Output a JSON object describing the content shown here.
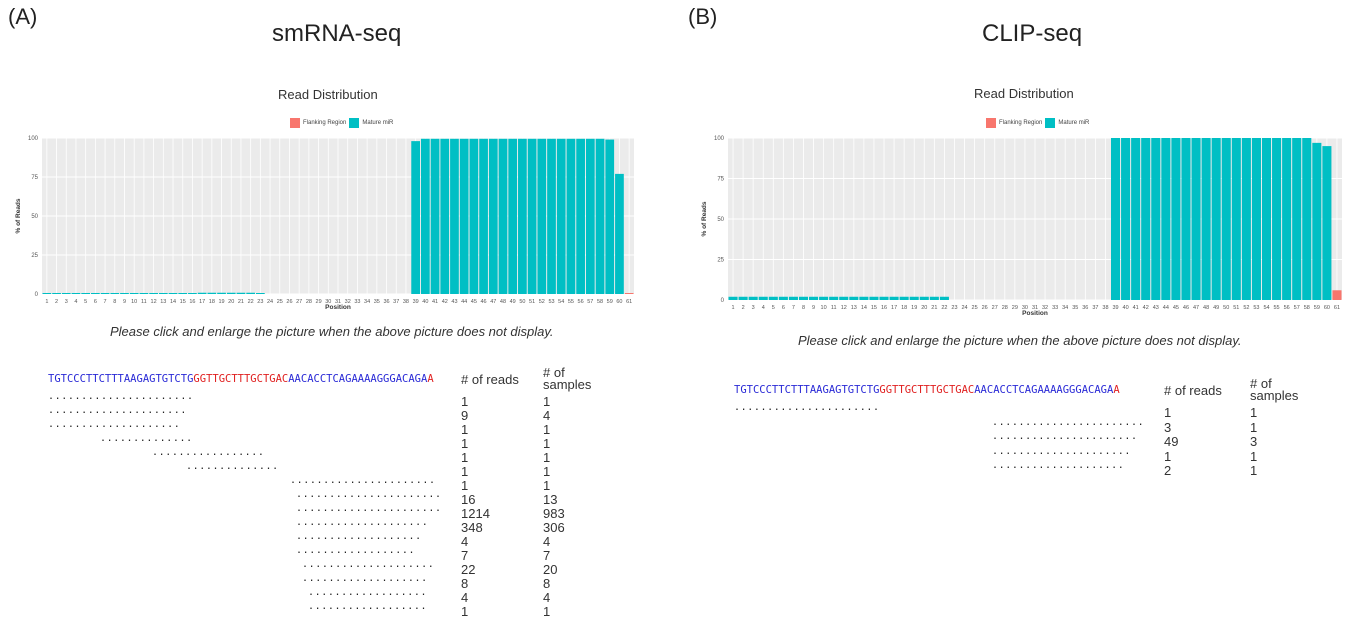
{
  "panels": [
    {
      "label": "(A)",
      "title": "smRNA-seq",
      "note": "Please click and enlarge the picture when the above picture does not display.",
      "sequence": {
        "blue_start": "TGTCCCTTCTTTAAGAGTGTCTG",
        "red": "GGTTGCTTTGCTGAC",
        "blue_end": "AACACCTCAGAAAAGGGACAGA",
        "red_end": "A"
      },
      "headers": {
        "reads": "# of reads",
        "samples_line1": "# of",
        "samples_line2": "samples"
      },
      "rows": [
        {
          "dots": "......................",
          "reads": "1",
          "samples": "1"
        },
        {
          "dots": ".....................",
          "reads": "9",
          "samples": "4"
        },
        {
          "dots": "....................",
          "reads": "1",
          "samples": "1"
        },
        {
          "dots": "..............",
          "reads": "1",
          "samples": "1"
        },
        {
          "dots": ".................",
          "reads": "1",
          "samples": "1"
        },
        {
          "dots": "..............",
          "reads": "1",
          "samples": "1"
        },
        {
          "dots": "......................",
          "reads": "1",
          "samples": "1"
        },
        {
          "dots": "......................",
          "reads": "16",
          "samples": "13"
        },
        {
          "dots": "......................",
          "reads": "1214",
          "samples": "983"
        },
        {
          "dots": "....................",
          "reads": "348",
          "samples": "306"
        },
        {
          "dots": "...................",
          "reads": "4",
          "samples": "4"
        },
        {
          "dots": "..................",
          "reads": "7",
          "samples": "7"
        },
        {
          "dots": "....................",
          "reads": "22",
          "samples": "20"
        },
        {
          "dots": "...................",
          "reads": "8",
          "samples": "8"
        },
        {
          "dots": "..................",
          "reads": "4",
          "samples": "4"
        },
        {
          "dots": "..................",
          "reads": "1",
          "samples": "1"
        }
      ]
    },
    {
      "label": "(B)",
      "title": "CLIP-seq",
      "note": "Please click and enlarge the picture when the above picture does not display.",
      "sequence": {
        "blue_start": "TGTCCCTTCTTTAAGAGTGTCTG",
        "red": "GGTTGCTTTGCTGAC",
        "blue_end": "AACACCTCAGAAAAGGGACAGA",
        "red_end": "A"
      },
      "headers": {
        "reads": "# of reads",
        "samples_line1": "# of",
        "samples_line2": "samples"
      },
      "rows": [
        {
          "dots": "......................",
          "reads": "1",
          "samples": "1"
        },
        {
          "dots": ".......................",
          "reads": "3",
          "samples": "1"
        },
        {
          "dots": "......................",
          "reads": "49",
          "samples": "3"
        },
        {
          "dots": ".....................",
          "reads": "1",
          "samples": "1"
        },
        {
          "dots": "....................",
          "reads": "2",
          "samples": "1"
        }
      ]
    }
  ],
  "chart_data": [
    {
      "type": "bar",
      "title": "Read Distribution",
      "xlabel": "Position",
      "ylabel": "% of Reads",
      "ylim": [
        0,
        100
      ],
      "yticks": [
        0,
        25,
        50,
        75,
        100
      ],
      "grid": true,
      "legend_position": "top",
      "legend": [
        {
          "name": "Flanking Region",
          "color": "#f8766d"
        },
        {
          "name": "Mature miR",
          "color": "#00bfc4"
        }
      ],
      "categories": [
        1,
        2,
        3,
        4,
        5,
        6,
        7,
        8,
        9,
        10,
        11,
        12,
        13,
        14,
        15,
        16,
        17,
        18,
        19,
        20,
        21,
        22,
        23,
        24,
        25,
        26,
        27,
        28,
        29,
        30,
        31,
        32,
        33,
        34,
        35,
        36,
        37,
        38,
        39,
        40,
        41,
        42,
        43,
        44,
        45,
        46,
        47,
        48,
        49,
        50,
        51,
        52,
        53,
        54,
        55,
        56,
        57,
        58,
        59,
        60,
        61
      ],
      "values": [
        0.5,
        0.5,
        0.5,
        0.5,
        0.5,
        0.5,
        0.5,
        0.5,
        0.5,
        0.5,
        0.5,
        0.5,
        0.5,
        0.5,
        0.5,
        0.5,
        0.8,
        0.8,
        0.8,
        0.8,
        0.8,
        0.8,
        0.3,
        0,
        0,
        0,
        0,
        0,
        0,
        0,
        0,
        0,
        0,
        0,
        0,
        0,
        0,
        0,
        98,
        99.5,
        99.5,
        99.5,
        99.5,
        99.5,
        99.5,
        99.5,
        99.5,
        99.5,
        99.5,
        99.5,
        99.5,
        99.5,
        99.5,
        99.5,
        99.5,
        99.5,
        99.5,
        99.5,
        99,
        77,
        0.5
      ],
      "groups": [
        "mature",
        "mature",
        "mature",
        "mature",
        "mature",
        "mature",
        "mature",
        "mature",
        "mature",
        "mature",
        "mature",
        "mature",
        "mature",
        "mature",
        "mature",
        "mature",
        "mature",
        "mature",
        "mature",
        "mature",
        "mature",
        "mature",
        "mature",
        "mature",
        "mature",
        "mature",
        "mature",
        "mature",
        "mature",
        "mature",
        "mature",
        "mature",
        "mature",
        "mature",
        "mature",
        "mature",
        "mature",
        "mature",
        "mature",
        "mature",
        "mature",
        "mature",
        "mature",
        "mature",
        "mature",
        "mature",
        "mature",
        "mature",
        "mature",
        "mature",
        "mature",
        "mature",
        "mature",
        "mature",
        "mature",
        "mature",
        "mature",
        "mature",
        "mature",
        "mature",
        "flank"
      ]
    },
    {
      "type": "bar",
      "title": "Read Distribution",
      "xlabel": "Position",
      "ylabel": "% of Reads",
      "ylim": [
        0,
        100
      ],
      "yticks": [
        0,
        25,
        50,
        75,
        100
      ],
      "grid": true,
      "legend_position": "top",
      "legend": [
        {
          "name": "Flanking Region",
          "color": "#f8766d"
        },
        {
          "name": "Mature miR",
          "color": "#00bfc4"
        }
      ],
      "categories": [
        1,
        2,
        3,
        4,
        5,
        6,
        7,
        8,
        9,
        10,
        11,
        12,
        13,
        14,
        15,
        16,
        17,
        18,
        19,
        20,
        21,
        22,
        23,
        24,
        25,
        26,
        27,
        28,
        29,
        30,
        31,
        32,
        33,
        34,
        35,
        36,
        37,
        38,
        39,
        40,
        41,
        42,
        43,
        44,
        45,
        46,
        47,
        48,
        49,
        50,
        51,
        52,
        53,
        54,
        55,
        56,
        57,
        58,
        59,
        60,
        61
      ],
      "values": [
        2,
        2,
        2,
        2,
        2,
        2,
        2,
        2,
        2,
        2,
        2,
        2,
        2,
        2,
        2,
        2,
        2,
        2,
        2,
        2,
        2,
        2,
        0,
        0,
        0,
        0,
        0,
        0,
        0,
        0,
        0,
        0,
        0,
        0,
        0,
        0,
        0,
        0,
        100,
        100,
        100,
        100,
        100,
        100,
        100,
        100,
        100,
        100,
        100,
        100,
        100,
        100,
        100,
        100,
        100,
        100,
        100,
        100,
        97,
        95,
        6
      ],
      "groups": [
        "mature",
        "mature",
        "mature",
        "mature",
        "mature",
        "mature",
        "mature",
        "mature",
        "mature",
        "mature",
        "mature",
        "mature",
        "mature",
        "mature",
        "mature",
        "mature",
        "mature",
        "mature",
        "mature",
        "mature",
        "mature",
        "mature",
        "mature",
        "mature",
        "mature",
        "mature",
        "mature",
        "mature",
        "mature",
        "mature",
        "mature",
        "mature",
        "mature",
        "mature",
        "mature",
        "mature",
        "mature",
        "mature",
        "mature",
        "mature",
        "mature",
        "mature",
        "mature",
        "mature",
        "mature",
        "mature",
        "mature",
        "mature",
        "mature",
        "mature",
        "mature",
        "mature",
        "mature",
        "mature",
        "mature",
        "mature",
        "mature",
        "mature",
        "mature",
        "mature",
        "flank"
      ]
    }
  ]
}
